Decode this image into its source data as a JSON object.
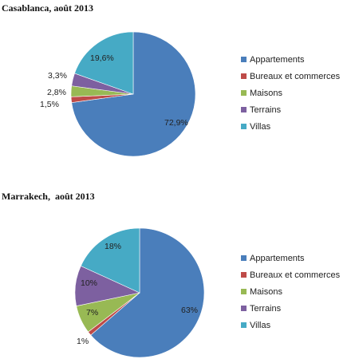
{
  "chart_data": [
    {
      "type": "pie",
      "title": "Casablanca, août 2013",
      "categories": [
        "Appartements",
        "Bureaux et commerces",
        "Maisons",
        "Terrains",
        "Villas"
      ],
      "values": [
        72.9,
        1.5,
        2.8,
        3.3,
        19.6
      ],
      "labels": [
        "72,9%",
        "1,5%",
        "2,8%",
        "3,3%",
        "19,6%"
      ],
      "legend": "right"
    },
    {
      "type": "pie",
      "title": "Marrakech,  août 2013",
      "categories": [
        "Appartements",
        "Bureaux et commerces",
        "Maisons",
        "Terrains",
        "Villas"
      ],
      "values": [
        63,
        1,
        7,
        10,
        18
      ],
      "labels": [
        "63%",
        "1%",
        "7%",
        "10%",
        "18%"
      ],
      "legend": "right"
    }
  ],
  "colors": [
    "#4a7ebb",
    "#be4b48",
    "#98b954",
    "#7d60a0",
    "#46aac5"
  ]
}
